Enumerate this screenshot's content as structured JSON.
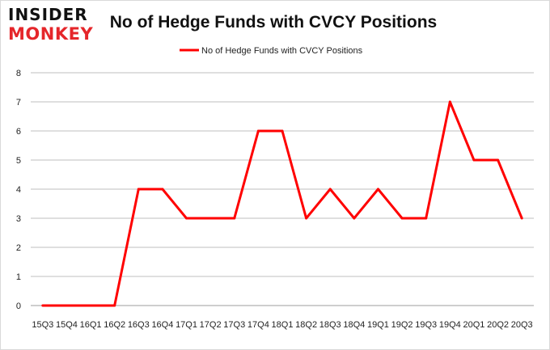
{
  "brand": {
    "line1": "INSIDER",
    "line2": "MONKEY"
  },
  "chart_data": {
    "type": "line",
    "title": "No of Hedge Funds with CVCY Positions",
    "xlabel": "",
    "ylabel": "",
    "categories": [
      "15Q3",
      "15Q4",
      "16Q1",
      "16Q2",
      "16Q3",
      "16Q4",
      "17Q1",
      "17Q2",
      "17Q3",
      "17Q4",
      "18Q1",
      "18Q2",
      "18Q3",
      "18Q4",
      "19Q1",
      "19Q2",
      "19Q3",
      "19Q4",
      "20Q1",
      "20Q2",
      "20Q3"
    ],
    "series": [
      {
        "name": "No of Hedge Funds with CVCY Positions",
        "color": "#ff0000",
        "values": [
          0,
          0,
          0,
          0,
          4,
          4,
          3,
          3,
          3,
          6,
          6,
          3,
          4,
          3,
          4,
          3,
          3,
          7,
          5,
          5,
          3
        ]
      }
    ],
    "ylim": [
      0,
      8
    ],
    "yticks": [
      "0",
      "1",
      "2",
      "3",
      "4",
      "5",
      "6",
      "7",
      "8"
    ],
    "grid": "horizontal",
    "legend": "top-center"
  }
}
